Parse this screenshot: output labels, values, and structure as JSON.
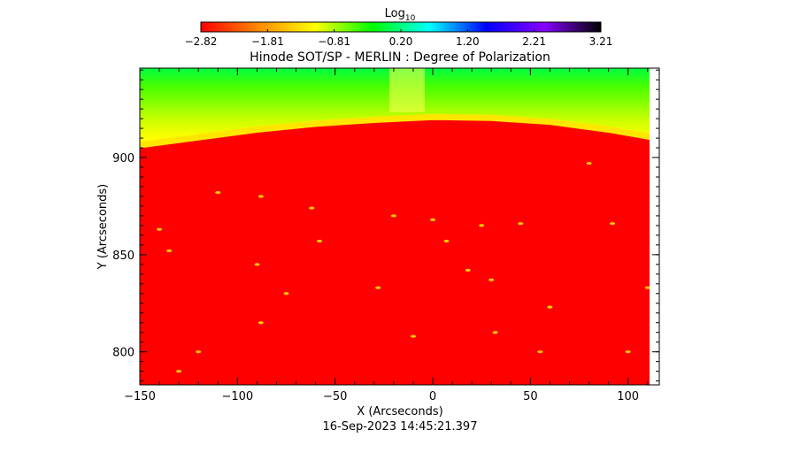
{
  "chart_data": {
    "type": "heatmap",
    "title": "Hinode SOT/SP - MERLIN : Degree of Polarization",
    "subtitle": "16-Sep-2023 14:45:21.397",
    "xlabel": "X (Arcseconds)",
    "ylabel": "Y (Arcseconds)",
    "xlim": [
      -150,
      116
    ],
    "ylim": [
      783,
      946
    ],
    "x_ticks": [
      -150,
      -100,
      -50,
      0,
      50,
      100
    ],
    "x_tick_labels": [
      "−150",
      "−100",
      "−50",
      "0",
      "50",
      "100"
    ],
    "y_ticks": [
      800,
      850,
      900
    ],
    "y_tick_labels": [
      "800",
      "850",
      "900"
    ],
    "colorbar": {
      "label_base": "Log",
      "label_sub": "10",
      "min": -2.82,
      "max": 3.21,
      "tick_labels": [
        "−2.82",
        "−1.81",
        "−0.81",
        "0.20",
        "1.20",
        "2.21",
        "3.21"
      ],
      "colormap": [
        "#ff0000",
        "#ff8800",
        "#ffff00",
        "#00ff00",
        "#00ffff",
        "#0000ff",
        "#8800ff",
        "#000000"
      ]
    },
    "limb": {
      "description_values": "disk edge Y at X",
      "x": [
        -150,
        -120,
        -90,
        -60,
        -30,
        0,
        30,
        60,
        90,
        113,
        116
      ],
      "y": [
        905,
        909,
        913,
        916,
        918,
        919.5,
        919,
        917,
        913,
        909,
        906
      ]
    },
    "regions": {
      "disk_color": "#ff0000",
      "above_limb_gradient": [
        "#ffff00",
        "#ccff00",
        "#88ff00",
        "#44ff00",
        "#00ff40"
      ]
    },
    "bright_features": [
      {
        "x": -140,
        "y": 863
      },
      {
        "x": -110,
        "y": 882
      },
      {
        "x": -88,
        "y": 880
      },
      {
        "x": -62,
        "y": 874
      },
      {
        "x": -20,
        "y": 870
      },
      {
        "x": 0,
        "y": 868
      },
      {
        "x": 25,
        "y": 865
      },
      {
        "x": 45,
        "y": 866
      },
      {
        "x": 80,
        "y": 897
      },
      {
        "x": 92,
        "y": 866
      },
      {
        "x": -135,
        "y": 852
      },
      {
        "x": -90,
        "y": 845
      },
      {
        "x": -28,
        "y": 833
      },
      {
        "x": 30,
        "y": 837
      },
      {
        "x": 60,
        "y": 823
      },
      {
        "x": 110,
        "y": 833
      },
      {
        "x": -88,
        "y": 815
      },
      {
        "x": -10,
        "y": 808
      },
      {
        "x": 32,
        "y": 810
      },
      {
        "x": -130,
        "y": 790
      },
      {
        "x": 55,
        "y": 800
      },
      {
        "x": -58,
        "y": 857
      },
      {
        "x": 7,
        "y": 857
      },
      {
        "x": -120,
        "y": 800
      },
      {
        "x": 100,
        "y": 800
      },
      {
        "x": -75,
        "y": 830
      },
      {
        "x": 18,
        "y": 842
      }
    ]
  }
}
